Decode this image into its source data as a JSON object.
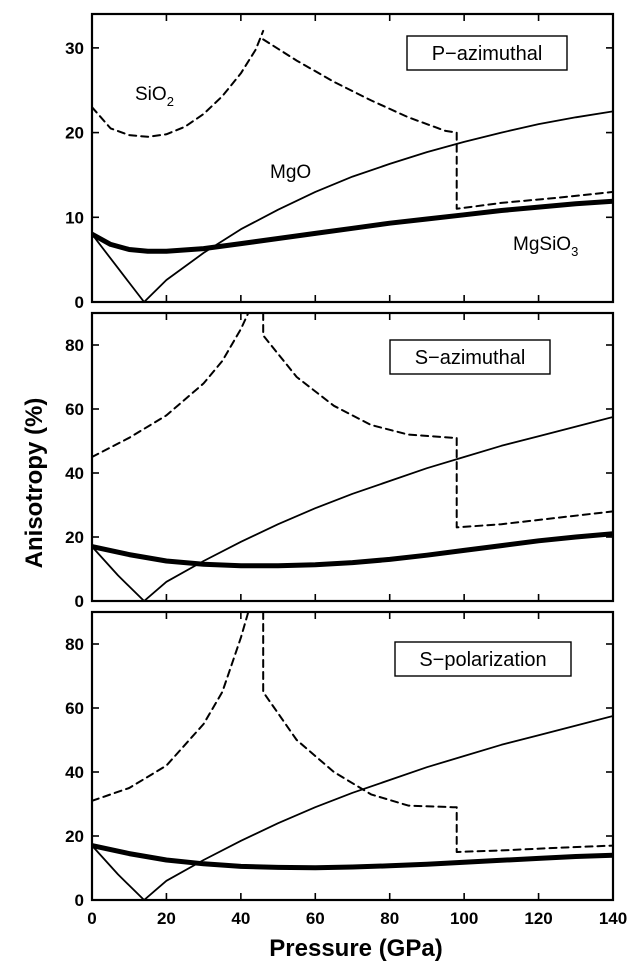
{
  "chart_data": {
    "type": "line",
    "xlabel": "Pressure (GPa)",
    "ylabel": "Anisotropy (%)",
    "xlim": [
      0,
      140
    ],
    "x_ticks": [
      0,
      20,
      40,
      60,
      80,
      100,
      120,
      140
    ],
    "grid": false,
    "panels": [
      {
        "title": "P−azimuthal",
        "ylim": [
          0,
          34
        ],
        "y_ticks": [
          0,
          10,
          20,
          30
        ],
        "series": [
          {
            "name": "SiO₂",
            "style": "dashed",
            "segments": [
              [
                [
                  0,
                  23
                ],
                [
                  5,
                  20.5
                ],
                [
                  10,
                  19.7
                ],
                [
                  15,
                  19.5
                ],
                [
                  20,
                  19.8
                ],
                [
                  25,
                  20.7
                ],
                [
                  30,
                  22.2
                ],
                [
                  35,
                  24.3
                ],
                [
                  40,
                  27
                ],
                [
                  44,
                  29.8
                ],
                [
                  46,
                  32
                ]
              ],
              [
                [
                  46,
                  31
                ],
                [
                  55,
                  28.5
                ],
                [
                  65,
                  26
                ],
                [
                  75,
                  23.8
                ],
                [
                  85,
                  21.8
                ],
                [
                  95,
                  20.2
                ],
                [
                  98,
                  20
                ],
                [
                  98,
                  11
                ],
                [
                  110,
                  11.7
                ],
                [
                  125,
                  12.3
                ],
                [
                  140,
                  13
                ]
              ]
            ]
          },
          {
            "name": "MgO",
            "style": "thin-solid",
            "segments": [
              [
                [
                  0,
                  8
                ],
                [
                  7,
                  4
                ],
                [
                  14,
                  0
                ],
                [
                  20,
                  2.6
                ],
                [
                  30,
                  5.8
                ],
                [
                  40,
                  8.6
                ],
                [
                  50,
                  10.9
                ],
                [
                  60,
                  13
                ],
                [
                  70,
                  14.8
                ],
                [
                  80,
                  16.3
                ],
                [
                  90,
                  17.7
                ],
                [
                  100,
                  18.9
                ],
                [
                  110,
                  20
                ],
                [
                  120,
                  21
                ],
                [
                  130,
                  21.8
                ],
                [
                  140,
                  22.5
                ]
              ]
            ]
          },
          {
            "name": "MgSiO₃",
            "style": "thick-solid",
            "segments": [
              [
                [
                  0,
                  8
                ],
                [
                  5,
                  6.8
                ],
                [
                  10,
                  6.2
                ],
                [
                  15,
                  6
                ],
                [
                  20,
                  6
                ],
                [
                  30,
                  6.3
                ],
                [
                  40,
                  6.9
                ],
                [
                  50,
                  7.5
                ],
                [
                  60,
                  8.1
                ],
                [
                  70,
                  8.7
                ],
                [
                  80,
                  9.3
                ],
                [
                  90,
                  9.8
                ],
                [
                  100,
                  10.3
                ],
                [
                  110,
                  10.8
                ],
                [
                  120,
                  11.2
                ],
                [
                  130,
                  11.6
                ],
                [
                  140,
                  11.9
                ]
              ]
            ]
          }
        ],
        "annotations": [
          "SiO₂",
          "MgO",
          "MgSiO₃"
        ]
      },
      {
        "title": "S−azimuthal",
        "ylim": [
          0,
          90
        ],
        "y_ticks": [
          0,
          20,
          40,
          60,
          80
        ],
        "series": [
          {
            "name": "SiO₂",
            "style": "dashed",
            "segments": [
              [
                [
                  0,
                  45
                ],
                [
                  10,
                  51
                ],
                [
                  20,
                  58
                ],
                [
                  30,
                  68
                ],
                [
                  35,
                  75
                ],
                [
                  40,
                  85
                ],
                [
                  42,
                  90
                ]
              ],
              [
                [
                  46,
                  90
                ],
                [
                  46,
                  83
                ],
                [
                  55,
                  70
                ],
                [
                  65,
                  61
                ],
                [
                  75,
                  55
                ],
                [
                  85,
                  52
                ],
                [
                  97,
                  51
                ],
                [
                  98,
                  51
                ],
                [
                  98,
                  23
                ],
                [
                  110,
                  24
                ],
                [
                  125,
                  26
                ],
                [
                  140,
                  28
                ]
              ]
            ]
          },
          {
            "name": "MgO",
            "style": "thin-solid",
            "segments": [
              [
                [
                  0,
                  17
                ],
                [
                  7,
                  8
                ],
                [
                  14,
                  0
                ],
                [
                  20,
                  6
                ],
                [
                  30,
                  12.5
                ],
                [
                  40,
                  18.5
                ],
                [
                  50,
                  24
                ],
                [
                  60,
                  29
                ],
                [
                  70,
                  33.5
                ],
                [
                  80,
                  37.5
                ],
                [
                  90,
                  41.5
                ],
                [
                  100,
                  45
                ],
                [
                  110,
                  48.5
                ],
                [
                  120,
                  51.5
                ],
                [
                  130,
                  54.5
                ],
                [
                  140,
                  57.5
                ]
              ]
            ]
          },
          {
            "name": "MgSiO₃",
            "style": "thick-solid",
            "segments": [
              [
                [
                  0,
                  17
                ],
                [
                  10,
                  14.5
                ],
                [
                  20,
                  12.5
                ],
                [
                  30,
                  11.5
                ],
                [
                  40,
                  11
                ],
                [
                  50,
                  11
                ],
                [
                  60,
                  11.3
                ],
                [
                  70,
                  12
                ],
                [
                  80,
                  13
                ],
                [
                  90,
                  14.3
                ],
                [
                  100,
                  15.8
                ],
                [
                  110,
                  17.3
                ],
                [
                  120,
                  18.8
                ],
                [
                  130,
                  20
                ],
                [
                  140,
                  21
                ]
              ]
            ]
          }
        ],
        "annotations": []
      },
      {
        "title": "S−polarization",
        "ylim": [
          0,
          90
        ],
        "y_ticks": [
          0,
          20,
          40,
          60,
          80
        ],
        "series": [
          {
            "name": "SiO₂",
            "style": "dashed",
            "segments": [
              [
                [
                  0,
                  31
                ],
                [
                  10,
                  35
                ],
                [
                  20,
                  42
                ],
                [
                  30,
                  55
                ],
                [
                  35,
                  65
                ],
                [
                  40,
                  82
                ],
                [
                  42,
                  90
                ]
              ],
              [
                [
                  46,
                  90
                ],
                [
                  46,
                  65
                ],
                [
                  55,
                  50
                ],
                [
                  65,
                  40
                ],
                [
                  75,
                  33
                ],
                [
                  85,
                  29.5
                ],
                [
                  97,
                  29
                ],
                [
                  98,
                  29
                ],
                [
                  98,
                  15
                ],
                [
                  110,
                  15.5
                ],
                [
                  125,
                  16.3
                ],
                [
                  140,
                  17
                ]
              ]
            ]
          },
          {
            "name": "MgO",
            "style": "thin-solid",
            "segments": [
              [
                [
                  0,
                  17
                ],
                [
                  7,
                  8
                ],
                [
                  14,
                  0
                ],
                [
                  20,
                  6
                ],
                [
                  30,
                  12.5
                ],
                [
                  40,
                  18.5
                ],
                [
                  50,
                  24
                ],
                [
                  60,
                  29
                ],
                [
                  70,
                  33.5
                ],
                [
                  80,
                  37.5
                ],
                [
                  90,
                  41.5
                ],
                [
                  100,
                  45
                ],
                [
                  110,
                  48.5
                ],
                [
                  120,
                  51.5
                ],
                [
                  130,
                  54.5
                ],
                [
                  140,
                  57.5
                ]
              ]
            ]
          },
          {
            "name": "MgSiO₃",
            "style": "thick-solid",
            "segments": [
              [
                [
                  0,
                  17
                ],
                [
                  10,
                  14.5
                ],
                [
                  20,
                  12.5
                ],
                [
                  30,
                  11.3
                ],
                [
                  40,
                  10.5
                ],
                [
                  50,
                  10.2
                ],
                [
                  60,
                  10.1
                ],
                [
                  70,
                  10.3
                ],
                [
                  80,
                  10.7
                ],
                [
                  90,
                  11.2
                ],
                [
                  100,
                  11.8
                ],
                [
                  110,
                  12.4
                ],
                [
                  120,
                  13
                ],
                [
                  130,
                  13.6
                ],
                [
                  140,
                  14
                ]
              ]
            ]
          }
        ],
        "annotations": []
      }
    ]
  },
  "colors": {
    "ink": "#000000",
    "background": "#ffffff"
  }
}
